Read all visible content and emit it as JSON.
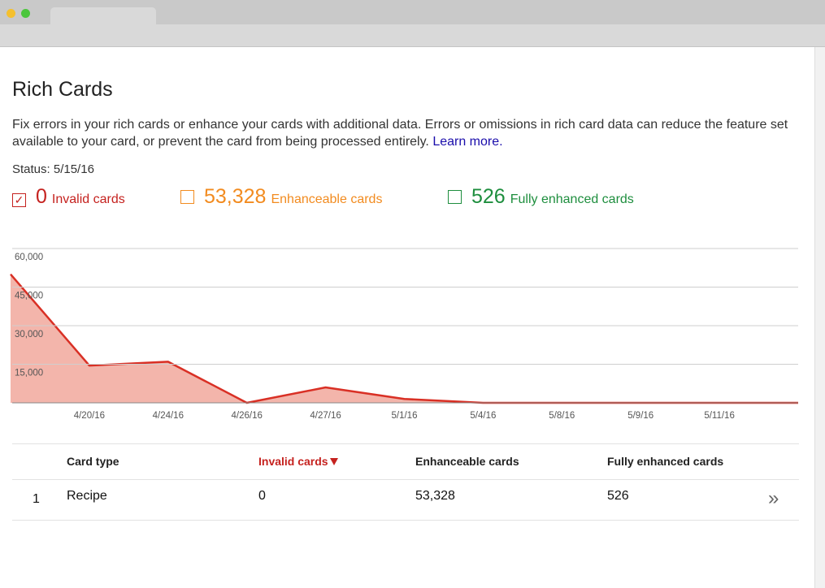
{
  "header": {
    "title": "Rich Cards"
  },
  "description": {
    "text": "Fix errors in your rich cards or enhance your cards with additional data. Errors or omissions in rich card data can reduce the feature set available to your card, or prevent the card from being processed entirely.",
    "link": "Learn more."
  },
  "status": "Status: 5/15/16",
  "summary": [
    {
      "count": "0",
      "label": "Invalid cards",
      "checked": true,
      "color": "#c5221f"
    },
    {
      "count": "53,328",
      "label": "Enhanceable cards",
      "checked": false,
      "color": "#f28b1f"
    },
    {
      "count": "526",
      "label": "Fully enhanced cards",
      "checked": false,
      "color": "#1e8e3e"
    }
  ],
  "chart_data": {
    "type": "area",
    "categories": [
      null,
      "4/20/16",
      "4/24/16",
      "4/26/16",
      "4/27/16",
      "5/1/16",
      "5/4/16",
      "5/8/16",
      "5/9/16",
      "5/11/16",
      null
    ],
    "values": [
      50000,
      14500,
      16000,
      0,
      6000,
      1500,
      0,
      0,
      0,
      0,
      0
    ],
    "color": "#d93025",
    "fill": "#f3b5ab",
    "ylim": [
      0,
      60000
    ],
    "yticks": [
      {
        "value": 15000,
        "label": "15,000"
      },
      {
        "value": 30000,
        "label": "30,000"
      },
      {
        "value": 45000,
        "label": "45,000"
      },
      {
        "value": 60000,
        "label": "60,000"
      }
    ],
    "grid": true
  },
  "table": {
    "headers": [
      "Card type",
      "Invalid cards",
      "Enhanceable cards",
      "Fully enhanced cards"
    ],
    "sorted_column": 1,
    "rows": [
      [
        "1",
        "Recipe",
        "0",
        "53,328",
        "526"
      ]
    ]
  }
}
